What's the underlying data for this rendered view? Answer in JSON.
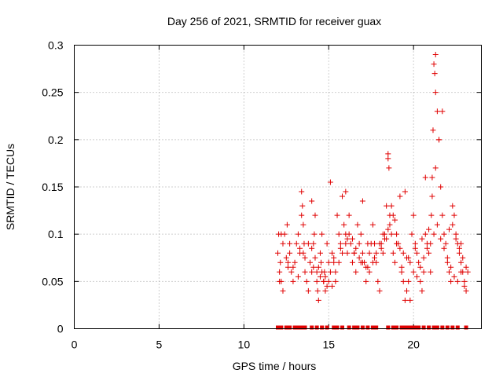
{
  "chart_data": {
    "type": "scatter",
    "title": "Day 256 of 2021, SRMTID for receiver guax",
    "xlabel": "GPS time / hours",
    "ylabel": "SRMTID / TECUs",
    "xlim": [
      0,
      24
    ],
    "ylim": [
      0,
      0.3
    ],
    "x_ticks": [
      0,
      5,
      10,
      15,
      20
    ],
    "x_tick_labels": [
      "0",
      "5",
      "10",
      "15",
      "20"
    ],
    "y_ticks": [
      0,
      0.05,
      0.1,
      0.15,
      0.2,
      0.25,
      0.3
    ],
    "y_tick_labels": [
      "0",
      "0.05",
      "0.1",
      "0.15",
      "0.2",
      "0.25",
      "0.3"
    ],
    "grid": true,
    "marker": "plus",
    "color": "#e00000",
    "series": [
      {
        "name": "SRMTID",
        "x": [
          12.0,
          12.05,
          12.1,
          12.15,
          12.2,
          12.3,
          12.4,
          12.5,
          12.55,
          12.6,
          12.7,
          12.8,
          12.9,
          13.0,
          13.1,
          13.2,
          13.3,
          13.4,
          13.45,
          13.5,
          13.55,
          13.6,
          13.7,
          13.8,
          13.9,
          14.0,
          14.1,
          14.15,
          14.2,
          14.3,
          14.35,
          14.4,
          14.5,
          14.55,
          14.6,
          14.7,
          14.75,
          14.8,
          14.9,
          15.0,
          15.1,
          15.2,
          15.3,
          15.4,
          15.5,
          15.6,
          15.7,
          15.8,
          15.9,
          16.0,
          16.1,
          16.2,
          16.3,
          16.4,
          16.5,
          16.6,
          16.7,
          16.8,
          16.9,
          17.0,
          17.1,
          17.2,
          17.3,
          17.4,
          17.5,
          17.6,
          17.7,
          17.8,
          17.9,
          18.0,
          18.1,
          18.2,
          18.3,
          18.4,
          18.5,
          18.55,
          18.6,
          18.7,
          18.8,
          18.9,
          19.0,
          19.1,
          19.2,
          19.3,
          19.4,
          19.5,
          19.6,
          19.7,
          19.8,
          19.9,
          20.0,
          20.1,
          20.2,
          20.3,
          20.4,
          20.5,
          20.6,
          20.7,
          20.8,
          20.9,
          21.0,
          21.05,
          21.1,
          21.15,
          21.2,
          21.25,
          21.3,
          21.4,
          21.5,
          21.6,
          21.7,
          21.8,
          21.9,
          22.0,
          22.1,
          22.2,
          22.3,
          22.4,
          22.5,
          22.6,
          22.7,
          22.8,
          22.9,
          23.0,
          23.1,
          23.2,
          12.1,
          12.3,
          12.6,
          12.9,
          13.2,
          13.5,
          13.8,
          14.0,
          14.2,
          14.4,
          14.6,
          14.8,
          15.0,
          15.2,
          15.4,
          15.6,
          15.8,
          16.0,
          16.2,
          16.4,
          16.6,
          16.8,
          17.0,
          17.2,
          17.4,
          17.6,
          17.8,
          18.0,
          18.2,
          18.4,
          18.6,
          18.8,
          19.0,
          19.2,
          19.4,
          19.6,
          19.8,
          20.0,
          20.2,
          20.4,
          20.6,
          20.8,
          21.0,
          21.2,
          21.4,
          21.6,
          21.8,
          22.0,
          22.2,
          22.4,
          22.6,
          22.8,
          23.0,
          12.2,
          12.7,
          13.3,
          13.6,
          14.1,
          14.3,
          14.5,
          14.7,
          14.9,
          15.3,
          15.7,
          16.1,
          16.5,
          16.9,
          17.3,
          17.7,
          18.1,
          18.3,
          18.5,
          18.7,
          18.9,
          19.3,
          19.7,
          20.1,
          20.5,
          20.9,
          21.1,
          21.3,
          21.5,
          21.7,
          22.1,
          22.5,
          22.7,
          22.9,
          23.1,
          13.4,
          14.0,
          15.1,
          16.0,
          17.0,
          18.5,
          19.5,
          20.7,
          21.3,
          22.3,
          22.8
        ],
        "y": [
          0.08,
          0.1,
          0.06,
          0.07,
          0.05,
          0.09,
          0.1,
          0.075,
          0.11,
          0.065,
          0.08,
          0.06,
          0.05,
          0.07,
          0.09,
          0.1,
          0.08,
          0.12,
          0.13,
          0.11,
          0.09,
          0.06,
          0.05,
          0.04,
          0.07,
          0.06,
          0.09,
          0.1,
          0.12,
          0.05,
          0.04,
          0.03,
          0.08,
          0.07,
          0.1,
          0.05,
          0.06,
          0.04,
          0.09,
          0.07,
          0.06,
          0.08,
          0.07,
          0.05,
          0.12,
          0.1,
          0.09,
          0.14,
          0.11,
          0.1,
          0.08,
          0.12,
          0.09,
          0.07,
          0.08,
          0.06,
          0.11,
          0.09,
          0.1,
          0.08,
          0.07,
          0.05,
          0.09,
          0.08,
          0.09,
          0.11,
          0.09,
          0.07,
          0.05,
          0.04,
          0.09,
          0.08,
          0.1,
          0.13,
          0.18,
          0.17,
          0.12,
          0.1,
          0.08,
          0.07,
          0.1,
          0.09,
          0.14,
          0.06,
          0.05,
          0.03,
          0.04,
          0.05,
          0.03,
          0.1,
          0.12,
          0.09,
          0.08,
          0.07,
          0.05,
          0.04,
          0.06,
          0.1,
          0.09,
          0.08,
          0.06,
          0.12,
          0.16,
          0.21,
          0.28,
          0.27,
          0.25,
          0.23,
          0.2,
          0.15,
          0.12,
          0.1,
          0.09,
          0.07,
          0.06,
          0.05,
          0.11,
          0.12,
          0.1,
          0.09,
          0.08,
          0.07,
          0.06,
          0.05,
          0.04,
          0.06,
          0.05,
          0.04,
          0.07,
          0.065,
          0.055,
          0.08,
          0.09,
          0.085,
          0.075,
          0.065,
          0.06,
          0.055,
          0.05,
          0.045,
          0.06,
          0.07,
          0.08,
          0.09,
          0.1,
          0.095,
          0.085,
          0.075,
          0.07,
          0.065,
          0.06,
          0.07,
          0.08,
          0.09,
          0.1,
          0.095,
          0.11,
          0.12,
          0.09,
          0.085,
          0.08,
          0.075,
          0.07,
          0.06,
          0.055,
          0.065,
          0.075,
          0.085,
          0.09,
          0.1,
          0.11,
          0.095,
          0.085,
          0.075,
          0.065,
          0.055,
          0.05,
          0.06,
          0.045,
          0.1,
          0.09,
          0.085,
          0.075,
          0.065,
          0.06,
          0.055,
          0.05,
          0.045,
          0.075,
          0.085,
          0.095,
          0.08,
          0.07,
          0.065,
          0.075,
          0.085,
          0.095,
          0.105,
          0.13,
          0.115,
          0.065,
          0.075,
          0.085,
          0.095,
          0.105,
          0.14,
          0.17,
          0.2,
          0.23,
          0.105,
          0.095,
          0.085,
          0.075,
          0.065,
          0.145,
          0.135,
          0.155,
          0.145,
          0.135,
          0.185,
          0.145,
          0.16,
          0.29,
          0.13,
          0.09
        ],
        "zeros_x": [
          12.0,
          12.2,
          12.5,
          12.7,
          13.0,
          13.2,
          13.4,
          13.6,
          14.0,
          14.3,
          14.6,
          14.9,
          15.3,
          15.5,
          15.8,
          16.2,
          16.5,
          16.7,
          17.0,
          17.3,
          17.6,
          17.8,
          18.5,
          18.8,
          19.0,
          19.3,
          19.5,
          19.7,
          19.9,
          20.1,
          20.3,
          20.6,
          20.9,
          21.2,
          21.4,
          21.7,
          22.0,
          22.3,
          22.6,
          23.1
        ]
      }
    ]
  }
}
